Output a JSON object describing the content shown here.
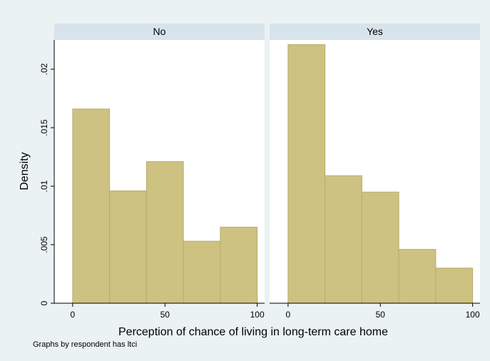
{
  "chart_data": {
    "type": "bar",
    "ylabel": "Density",
    "xlabel": "Perception of chance of living in long-term care home",
    "note": "Graphs by respondent has ltci",
    "x_ticks": [
      0,
      50,
      100
    ],
    "y_ticks": [
      0,
      0.005,
      0.01,
      0.015,
      0.02
    ],
    "y_tick_labels": [
      "0",
      ".005",
      ".01",
      ".015",
      ".02"
    ],
    "xlim": [
      -10,
      104
    ],
    "ylim": [
      0,
      0.0225
    ],
    "bin_edges": [
      0,
      20,
      40,
      60,
      80,
      100
    ],
    "bar_color": "#CDC281",
    "bar_edge_color": "#B8AD6A",
    "panel_header_color": "#D8E4EC",
    "outer_background": "#EAF2F3",
    "panels": [
      {
        "name": "No",
        "values": [
          0.0166,
          0.0096,
          0.0121,
          0.0053,
          0.0065
        ]
      },
      {
        "name": "Yes",
        "values": [
          0.0221,
          0.0109,
          0.0095,
          0.0046,
          0.003
        ]
      }
    ]
  }
}
